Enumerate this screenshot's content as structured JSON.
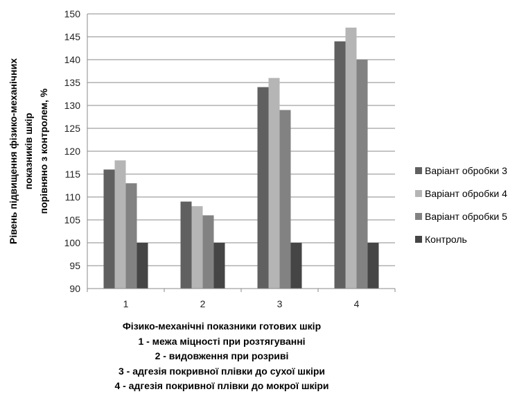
{
  "chart_data": {
    "type": "bar",
    "categories": [
      "1",
      "2",
      "3",
      "4"
    ],
    "series": [
      {
        "name": "Варіант обробки 3",
        "values": [
          116,
          109,
          134,
          144
        ],
        "color": "#606060"
      },
      {
        "name": "Варіант обробки 4",
        "values": [
          118,
          108,
          136,
          147
        ],
        "color": "#b5b5b5"
      },
      {
        "name": "Варіант обробки  5",
        "values": [
          113,
          106,
          129,
          140
        ],
        "color": "#828282"
      },
      {
        "name": "Контроль",
        "values": [
          100,
          100,
          100,
          100
        ],
        "color": "#454545"
      }
    ],
    "ylim": [
      90,
      150
    ],
    "yticks": [
      "90",
      "95",
      "100",
      "105",
      "110",
      "115",
      "120",
      "125",
      "130",
      "135",
      "140",
      "145",
      "150"
    ],
    "ylabel_lines": [
      "Рівень підвищення фізико-механічних",
      "показників шкір",
      "порівняно з контролем, %"
    ],
    "xlabel_lines": [
      "Фізико-механічні показники готових шкір",
      "1 - межа міцності при розтягуванні",
      "2 - видовження при розриві",
      "3 - адгезія покривної плівки до  сухої шкіри",
      "4 - адгезія покривної плівки до мокрої шкіри"
    ],
    "grid": true,
    "legend_position": "right"
  }
}
